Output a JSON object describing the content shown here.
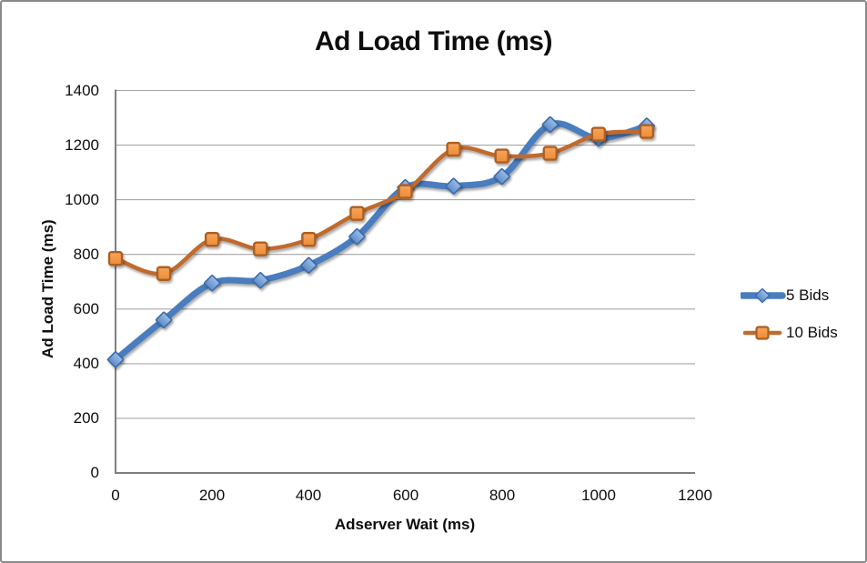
{
  "chart_data": {
    "type": "line",
    "title": "Ad Load Time (ms)",
    "xlabel": "Adserver Wait (ms)",
    "ylabel": "Ad Load Time (ms)",
    "x": [
      0,
      100,
      200,
      300,
      400,
      500,
      600,
      700,
      800,
      900,
      1000,
      1100
    ],
    "series": [
      {
        "name": "5 Bids",
        "marker": "diamond",
        "values": [
          415,
          560,
          695,
          705,
          760,
          865,
          1045,
          1050,
          1085,
          1275,
          1225,
          1270
        ],
        "line_color": "#4A7DBE",
        "line_width": 7,
        "marker_fill": "#5E8CC7",
        "marker_fill_light": "#9BBCE8",
        "marker_stroke": "#3A6BA8"
      },
      {
        "name": "10 Bids",
        "marker": "square",
        "values": [
          785,
          730,
          855,
          820,
          855,
          950,
          1030,
          1185,
          1160,
          1170,
          1240,
          1250
        ],
        "line_color": "#C06A2F",
        "line_width": 4.5,
        "marker_fill": "#EC8C35",
        "marker_fill_light": "#F6A55F",
        "marker_stroke": "#AC5F22"
      }
    ],
    "xlim": [
      0,
      1200
    ],
    "ylim": [
      0,
      1400
    ],
    "x_ticks": [
      0,
      200,
      400,
      600,
      800,
      1000,
      1200
    ],
    "y_ticks": [
      0,
      200,
      400,
      600,
      800,
      1000,
      1200,
      1400
    ],
    "grid": "horizontal",
    "smooth_lines": true,
    "legend_position": "right",
    "axis_color": "#7F7F7F",
    "grid_color": "#A6A6A6",
    "text_color": "#0D0D0D",
    "frame_border_color": "#8A8A8A",
    "background": "#FFFFFF"
  }
}
